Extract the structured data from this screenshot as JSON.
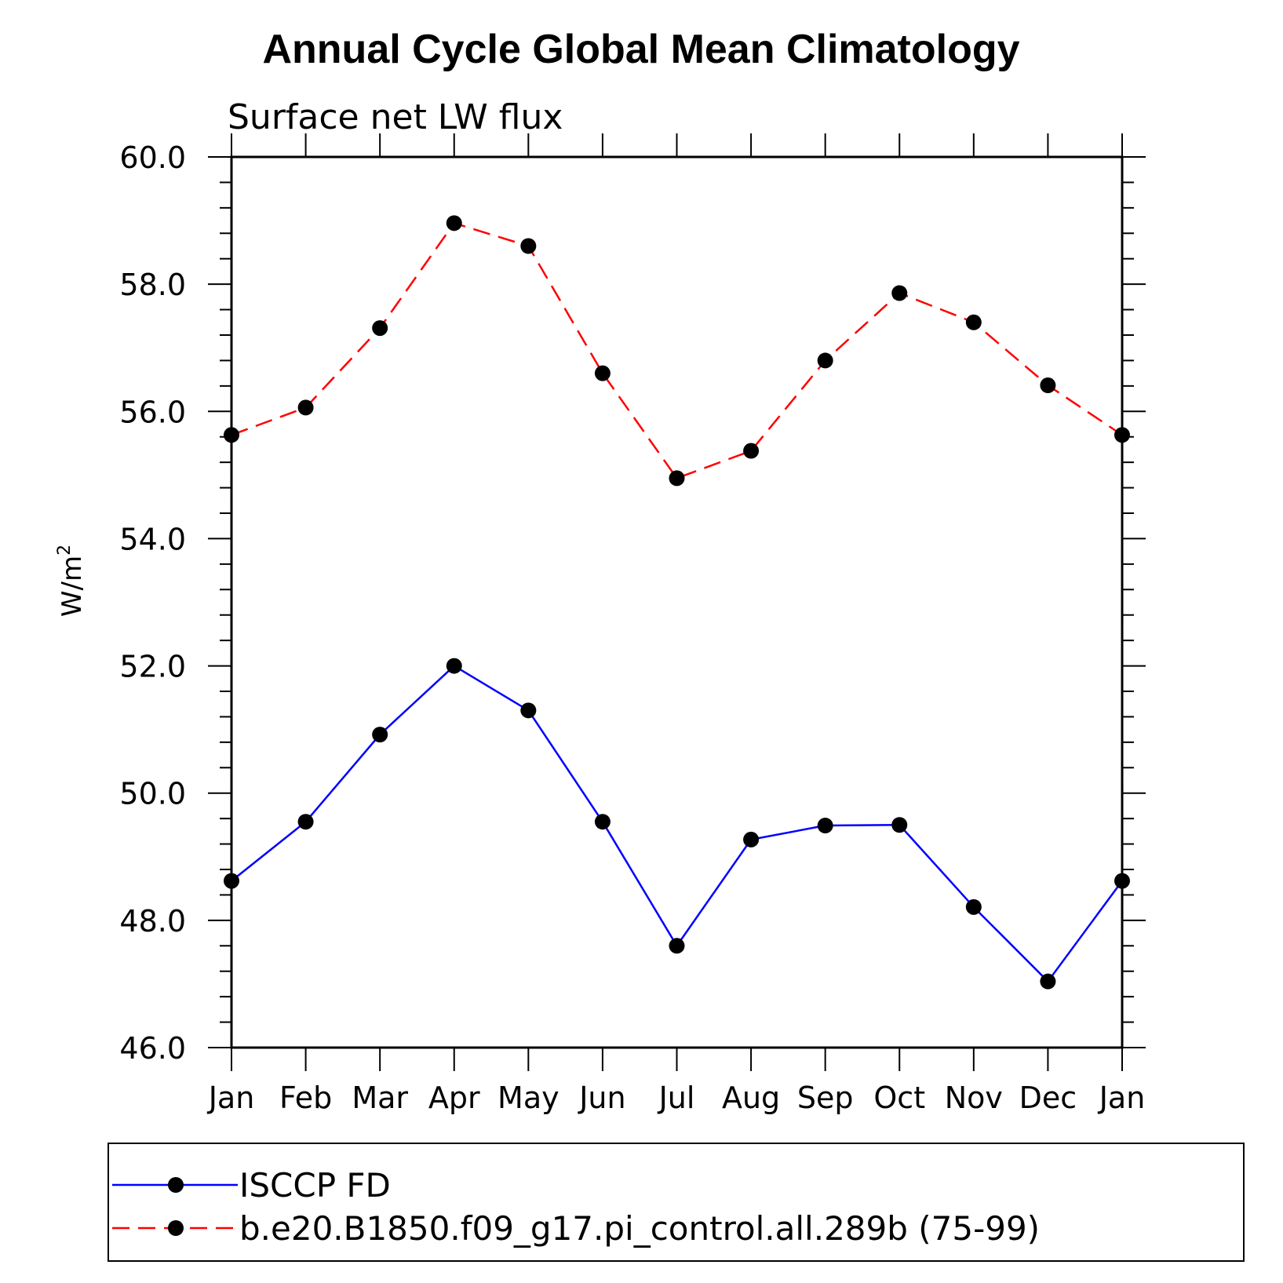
{
  "chart_data": {
    "type": "line",
    "title": "Annual Cycle Global Mean Climatology",
    "subtitle": "Surface net LW flux",
    "ylabel": "W/m",
    "ylabel_superscript": "2",
    "xlabel": "",
    "categories": [
      "Jan",
      "Feb",
      "Mar",
      "Apr",
      "May",
      "Jun",
      "Jul",
      "Aug",
      "Sep",
      "Oct",
      "Nov",
      "Dec",
      "Jan"
    ],
    "ylim": [
      46.0,
      60.0
    ],
    "yticks": [
      "46.0",
      "48.0",
      "50.0",
      "52.0",
      "54.0",
      "56.0",
      "58.0",
      "60.0"
    ],
    "grid": false,
    "legend_position": "bottom",
    "series": [
      {
        "name": "ISCCP FD",
        "color": "#0000ff",
        "style": "solid",
        "values": [
          48.62,
          49.55,
          50.92,
          52.0,
          51.3,
          49.55,
          47.6,
          49.27,
          49.49,
          49.5,
          48.21,
          47.04,
          48.62
        ]
      },
      {
        "name": "b.e20.B1850.f09_g17.pi_control.all.289b (75-99)",
        "color": "#ff0000",
        "style": "dashed",
        "values": [
          55.63,
          56.06,
          57.31,
          58.96,
          58.6,
          56.6,
          54.95,
          55.38,
          56.8,
          57.86,
          57.4,
          56.41,
          55.63
        ]
      }
    ]
  }
}
